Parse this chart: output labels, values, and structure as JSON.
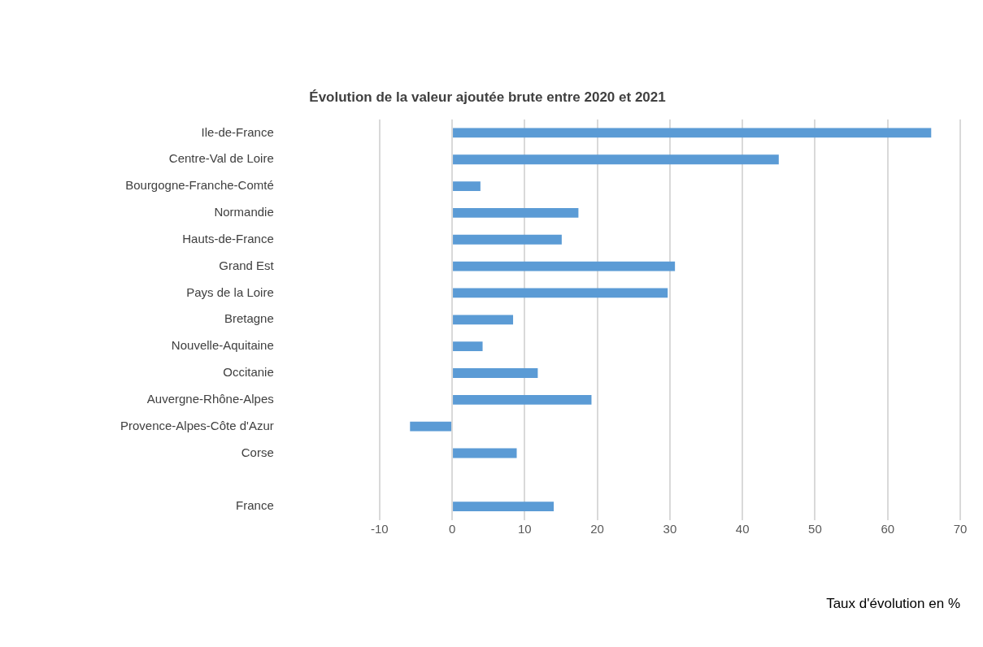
{
  "chart_data": {
    "type": "bar",
    "orientation": "horizontal",
    "title": "Évolution de la valeur ajoutée brute entre 2020 et 2021",
    "xlabel": "Taux d'évolution en %",
    "categories": [
      "Ile-de-France",
      "Centre-Val de Loire",
      "Bourgogne-Franche-Comté",
      "Normandie",
      "Hauts-de-France",
      "Grand Est",
      "Pays de la Loire",
      "Bretagne",
      "Nouvelle-Aquitaine",
      "Occitanie",
      "Auvergne-Rhône-Alpes",
      "Provence-Alpes-Côte d'Azur",
      "Corse",
      null,
      "France"
    ],
    "values": [
      66,
      45,
      3.9,
      17.4,
      15.1,
      30.7,
      29.7,
      8.4,
      4.2,
      11.8,
      19.2,
      -5.8,
      8.9,
      null,
      14.0
    ],
    "color": "#5b9bd5",
    "xlim": [
      -10,
      70
    ],
    "xticks": [
      -10,
      0,
      10,
      20,
      30,
      40,
      50,
      60,
      70
    ],
    "grid": "x",
    "legend": false
  }
}
